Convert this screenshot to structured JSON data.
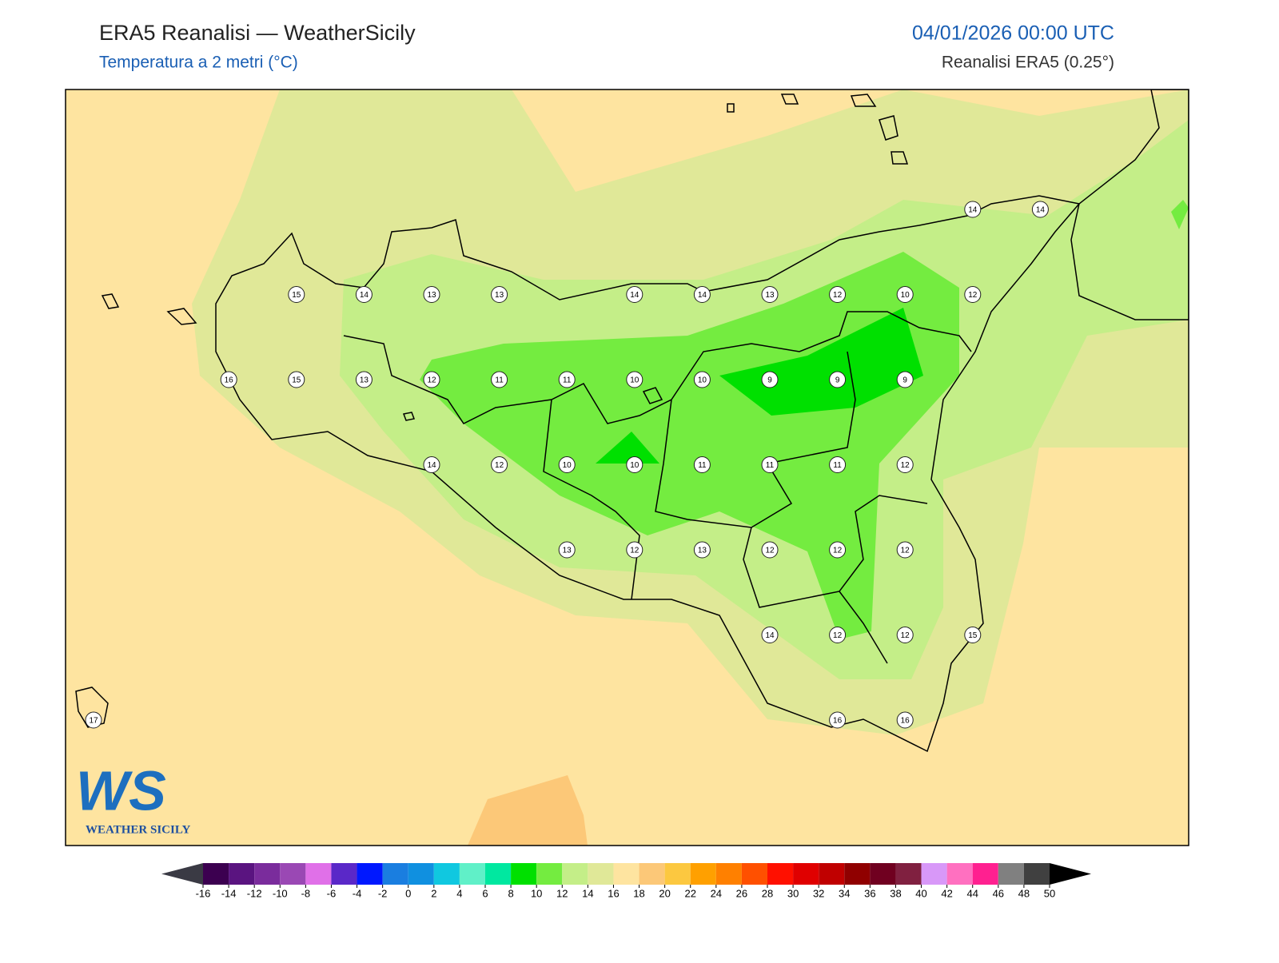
{
  "header": {
    "title": "ERA5 Reanalisi — WeatherSicily",
    "subtitle": "Temperatura a 2 metri (°C)",
    "datetime": "04/01/2026 00:00 UTC",
    "source": "Reanalisi ERA5 (0.25°)"
  },
  "logo": {
    "mark": "WS",
    "name": "WEATHER SICILY"
  },
  "stations": {
    "rows": [
      [
        null,
        null,
        null,
        null,
        null,
        null,
        null,
        null,
        null,
        null,
        null,
        null,
        null,
        14,
        14
      ],
      [
        null,
        null,
        null,
        15,
        14,
        13,
        13,
        null,
        14,
        14,
        13,
        12,
        10,
        12,
        null
      ],
      [
        null,
        null,
        16,
        15,
        13,
        12,
        11,
        11,
        10,
        10,
        9,
        9,
        9,
        null,
        null
      ],
      [
        null,
        null,
        null,
        null,
        null,
        14,
        12,
        10,
        10,
        11,
        11,
        11,
        12,
        null,
        null
      ],
      [
        null,
        null,
        null,
        null,
        null,
        null,
        null,
        13,
        12,
        13,
        12,
        12,
        12,
        null,
        null
      ],
      [
        null,
        null,
        null,
        null,
        null,
        null,
        null,
        null,
        null,
        null,
        14,
        12,
        12,
        15,
        null
      ],
      [
        17,
        null,
        null,
        null,
        null,
        null,
        null,
        null,
        null,
        null,
        null,
        16,
        16,
        null,
        null
      ]
    ]
  },
  "colorbar": {
    "ticks": [
      -16,
      -14,
      -12,
      -10,
      -8,
      -6,
      -4,
      -2,
      0,
      2,
      4,
      6,
      8,
      10,
      12,
      14,
      16,
      18,
      20,
      22,
      24,
      26,
      28,
      30,
      32,
      34,
      36,
      38,
      40,
      42,
      44,
      46,
      48,
      50
    ],
    "colors": [
      "#3c0050",
      "#5a1480",
      "#7a2c9c",
      "#9a48b4",
      "#e070e8",
      "#5a28c8",
      "#0018ff",
      "#1a7ee0",
      "#1090e0",
      "#10c8e0",
      "#60f0c8",
      "#00e8a0",
      "#00e000",
      "#74ec40",
      "#c4ee88",
      "#e0e898",
      "#fee4a0",
      "#fcc878",
      "#fcc840",
      "#ffa000",
      "#ff8000",
      "#ff5000",
      "#ff1000",
      "#e00000",
      "#c00000",
      "#900000",
      "#700020",
      "#802040",
      "#d898f8",
      "#ff70c0",
      "#ff2090",
      "#808080",
      "#404040"
    ],
    "under_color": "#3a3a44",
    "over_color": "#000000"
  }
}
